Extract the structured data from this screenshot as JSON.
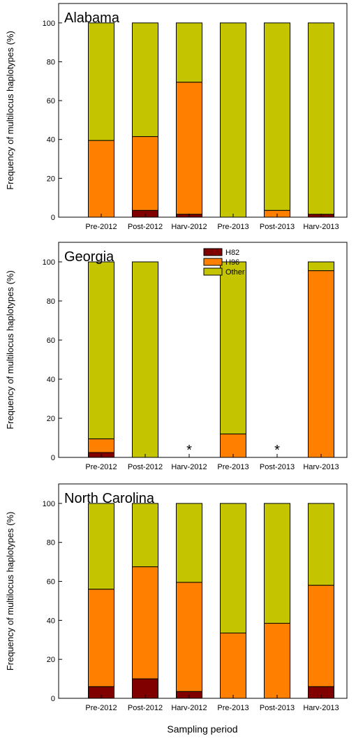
{
  "figure": {
    "xlabel": "Sampling period",
    "colors": {
      "H82": "#800000",
      "H96": "#ff8000",
      "Other": "#c4c400"
    }
  },
  "chart_data": [
    {
      "type": "bar",
      "stacked": true,
      "title": "Alabama",
      "ylabel": "Frequency of multilocus haplotypes (%)",
      "ylim": [
        0,
        110
      ],
      "yticks": [
        0,
        20,
        40,
        60,
        80,
        100
      ],
      "categories": [
        "Pre-2012",
        "Post-2012",
        "Harv-2012",
        "Pre-2013",
        "Post-2013",
        "Harv-2013"
      ],
      "series": [
        {
          "name": "H82",
          "values": [
            0,
            3.5,
            1.5,
            0,
            0,
            1.5
          ]
        },
        {
          "name": "H96",
          "values": [
            39.5,
            38,
            68,
            0,
            3.5,
            0
          ]
        },
        {
          "name": "Other",
          "values": [
            60.5,
            58.5,
            30.5,
            100,
            96.5,
            98.5
          ]
        }
      ],
      "annotations": [],
      "legend": false
    },
    {
      "type": "bar",
      "stacked": true,
      "title": "Georgia",
      "ylabel": "Frequency of multilocus haplotypes (%)",
      "ylim": [
        0,
        110
      ],
      "yticks": [
        0,
        20,
        40,
        60,
        80,
        100
      ],
      "categories": [
        "Pre-2012",
        "Post-2012",
        "Harv-2012",
        "Pre-2013",
        "Post-2013",
        "Harv-2013"
      ],
      "series": [
        {
          "name": "H82",
          "values": [
            2.5,
            0,
            0,
            0,
            0,
            0
          ]
        },
        {
          "name": "H96",
          "values": [
            7,
            0,
            0,
            12,
            0,
            95.5
          ]
        },
        {
          "name": "Other",
          "values": [
            90.5,
            100,
            0,
            88,
            0,
            4.5
          ]
        }
      ],
      "annotations": [
        {
          "category": "Harv-2012",
          "text": "*"
        },
        {
          "category": "Post-2013",
          "text": "*"
        }
      ],
      "legend": true,
      "legend_position": "top-center",
      "legend_entries": [
        "H82",
        "H96",
        "Other"
      ]
    },
    {
      "type": "bar",
      "stacked": true,
      "title": "North Carolina",
      "ylabel": "Frequency of multilocus haplotypes (%)",
      "ylim": [
        0,
        110
      ],
      "yticks": [
        0,
        20,
        40,
        60,
        80,
        100
      ],
      "categories": [
        "Pre-2012",
        "Post-2012",
        "Harv-2012",
        "Pre-2013",
        "Post-2013",
        "Harv-2013"
      ],
      "series": [
        {
          "name": "H82",
          "values": [
            6,
            10,
            3.5,
            0,
            0,
            6
          ]
        },
        {
          "name": "H96",
          "values": [
            50,
            57.5,
            56,
            33.5,
            38.5,
            52
          ]
        },
        {
          "name": "Other",
          "values": [
            44,
            32.5,
            40.5,
            66.5,
            61.5,
            42
          ]
        }
      ],
      "annotations": [],
      "legend": false
    }
  ]
}
